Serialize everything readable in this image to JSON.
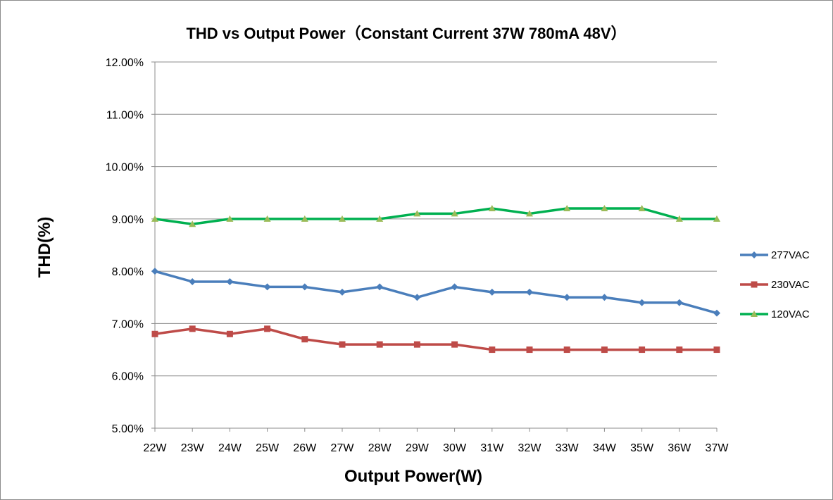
{
  "chart_data": {
    "type": "line",
    "title": "THD vs Output Power（Constant Current 37W   780mA 48V）",
    "xlabel": "Output Power(W)",
    "ylabel": "THD(%)",
    "categories": [
      "22W",
      "23W",
      "24W",
      "25W",
      "26W",
      "27W",
      "28W",
      "29W",
      "30W",
      "31W",
      "32W",
      "33W",
      "34W",
      "35W",
      "36W",
      "37W"
    ],
    "ylim": [
      5.0,
      12.0
    ],
    "yticks": [
      "5.00%",
      "6.00%",
      "7.00%",
      "8.00%",
      "9.00%",
      "10.00%",
      "11.00%",
      "12.00%"
    ],
    "grid": true,
    "legend_position": "right",
    "series": [
      {
        "name": "277VAC",
        "color": "#4a7ebb",
        "marker": "diamond",
        "values": [
          8.0,
          7.8,
          7.8,
          7.7,
          7.7,
          7.6,
          7.7,
          7.5,
          7.7,
          7.6,
          7.6,
          7.5,
          7.5,
          7.4,
          7.4,
          7.2
        ]
      },
      {
        "name": "230VAC",
        "color": "#be4b48",
        "marker": "square",
        "values": [
          6.8,
          6.9,
          6.8,
          6.9,
          6.7,
          6.6,
          6.6,
          6.6,
          6.6,
          6.5,
          6.5,
          6.5,
          6.5,
          6.5,
          6.5,
          6.5
        ]
      },
      {
        "name": "120VAC",
        "color": "#00b050",
        "marker": "triangle",
        "marker_color": "#9bbb59",
        "values": [
          9.0,
          8.9,
          9.0,
          9.0,
          9.0,
          9.0,
          9.0,
          9.1,
          9.1,
          9.2,
          9.1,
          9.2,
          9.2,
          9.2,
          9.0,
          9.0
        ]
      }
    ]
  }
}
